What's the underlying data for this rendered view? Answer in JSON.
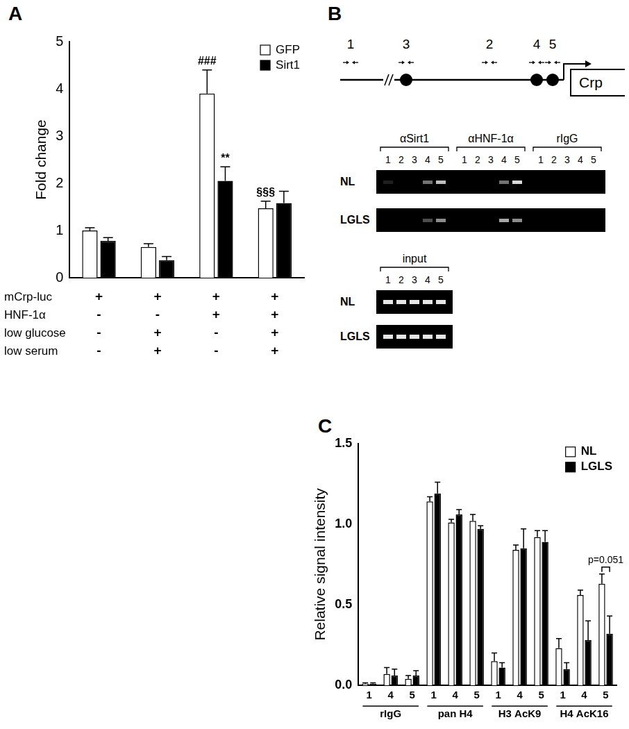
{
  "chart_data": [
    {
      "type": "bar",
      "title": "A",
      "ylabel": "Fold change",
      "categories": [
        null,
        null,
        null,
        null
      ],
      "ylim": [
        0,
        5
      ],
      "yticks": [
        0,
        1,
        2,
        3,
        4,
        5
      ],
      "grid": false,
      "legend": "top right",
      "tick_labels": "y",
      "series": [
        {
          "name": "GFP",
          "color": "#ffffff",
          "values": [
            1.0,
            0.65,
            3.9,
            1.47
          ],
          "errors": [
            0.06,
            0.07,
            0.5,
            0.15
          ],
          "significance": [
            null,
            null,
            "###",
            "§§§"
          ]
        },
        {
          "name": "Sirt1",
          "color": "#000000",
          "values": [
            0.78,
            0.37,
            2.05,
            1.58
          ],
          "errors": [
            0.07,
            0.08,
            0.3,
            0.25
          ],
          "significance": [
            null,
            null,
            "**",
            null
          ]
        }
      ],
      "conditions": [
        {
          "label": "mCrp-luc",
          "marks": [
            "+",
            "+",
            "+",
            "+"
          ]
        },
        {
          "label": "HNF-1α",
          "marks": [
            "-",
            "-",
            "+",
            "+"
          ]
        },
        {
          "label": "low glucose",
          "marks": [
            "-",
            "+",
            "-",
            "+"
          ]
        },
        {
          "label": "low serum",
          "marks": [
            "-",
            "+",
            "-",
            "+"
          ]
        }
      ]
    },
    {
      "type": "bar",
      "title": "C",
      "ylabel": "Relative signal intensity",
      "categories": [
        "1",
        "4",
        "5",
        "1",
        "4",
        "5",
        "1",
        "4",
        "5",
        "1",
        "4",
        "5"
      ],
      "groups": [
        "rIgG",
        "rIgG",
        "rIgG",
        "pan H4",
        "pan H4",
        "pan H4",
        "H3 AcK9",
        "H3 AcK9",
        "H3 AcK9",
        "H4 AcK16",
        "H4 AcK16",
        "H4 AcK16"
      ],
      "ylim": [
        0,
        1.5
      ],
      "yticks": [
        {
          "value": 0,
          "label": "0.0"
        },
        {
          "value": 0.5,
          "label": "0.5"
        },
        {
          "value": 1,
          "label": "1.0"
        },
        {
          "value": 1.5,
          "label": "1.5"
        }
      ],
      "grid": false,
      "legend": "top right",
      "series": [
        {
          "name": "NL",
          "color": "#ffffff",
          "values": [
            0.01,
            0.07,
            0.04,
            1.14,
            1.01,
            1.02,
            0.15,
            0.84,
            0.92,
            0.23,
            0.56,
            0.63
          ],
          "errors": [
            0.005,
            0.04,
            0.02,
            0.03,
            0.02,
            0.04,
            0.05,
            0.03,
            0.04,
            0.06,
            0.03,
            0.06
          ]
        },
        {
          "name": "LGLS",
          "color": "#000000",
          "values": [
            0.01,
            0.06,
            0.06,
            1.19,
            1.06,
            0.97,
            0.11,
            0.85,
            0.89,
            0.1,
            0.28,
            0.32
          ],
          "errors": [
            0.005,
            0.04,
            0.03,
            0.07,
            0.03,
            0.02,
            0.03,
            0.12,
            0.07,
            0.04,
            0.12,
            0.11
          ]
        }
      ],
      "p_values": [
        null,
        null,
        null,
        null,
        null,
        null,
        null,
        null,
        null,
        null,
        null,
        "p=0.051"
      ]
    }
  ],
  "diagram": {
    "title": "B",
    "gene": "Crp",
    "primers": [
      "1",
      "3",
      "2",
      "4",
      "5"
    ],
    "gels": {
      "antibodies": [
        "αSirt1",
        "αHNF-1α",
        "rIgG"
      ],
      "lanes": [
        "1",
        "2",
        "3",
        "4",
        "5"
      ],
      "rows": [
        {
          "label": "NL",
          "bands": [
            [
              0.12,
              0,
              0,
              0.45,
              0.75
            ],
            [
              0,
              0,
              0,
              0.45,
              0.85
            ],
            [
              0,
              0,
              0,
              0,
              0
            ]
          ]
        },
        {
          "label": "LGLS",
          "bands": [
            [
              0,
              0,
              0,
              0.3,
              0.55
            ],
            [
              0,
              0,
              0,
              0.65,
              0.55
            ],
            [
              0,
              0,
              0,
              0,
              0
            ]
          ]
        }
      ]
    },
    "input": {
      "title": "input",
      "rows": [
        {
          "label": "NL",
          "bands": [
            0.9,
            0.9,
            0.9,
            0.9,
            0.9
          ]
        },
        {
          "label": "LGLS",
          "bands": [
            0.9,
            0.9,
            0.9,
            0.9,
            0.9
          ]
        }
      ]
    }
  }
}
